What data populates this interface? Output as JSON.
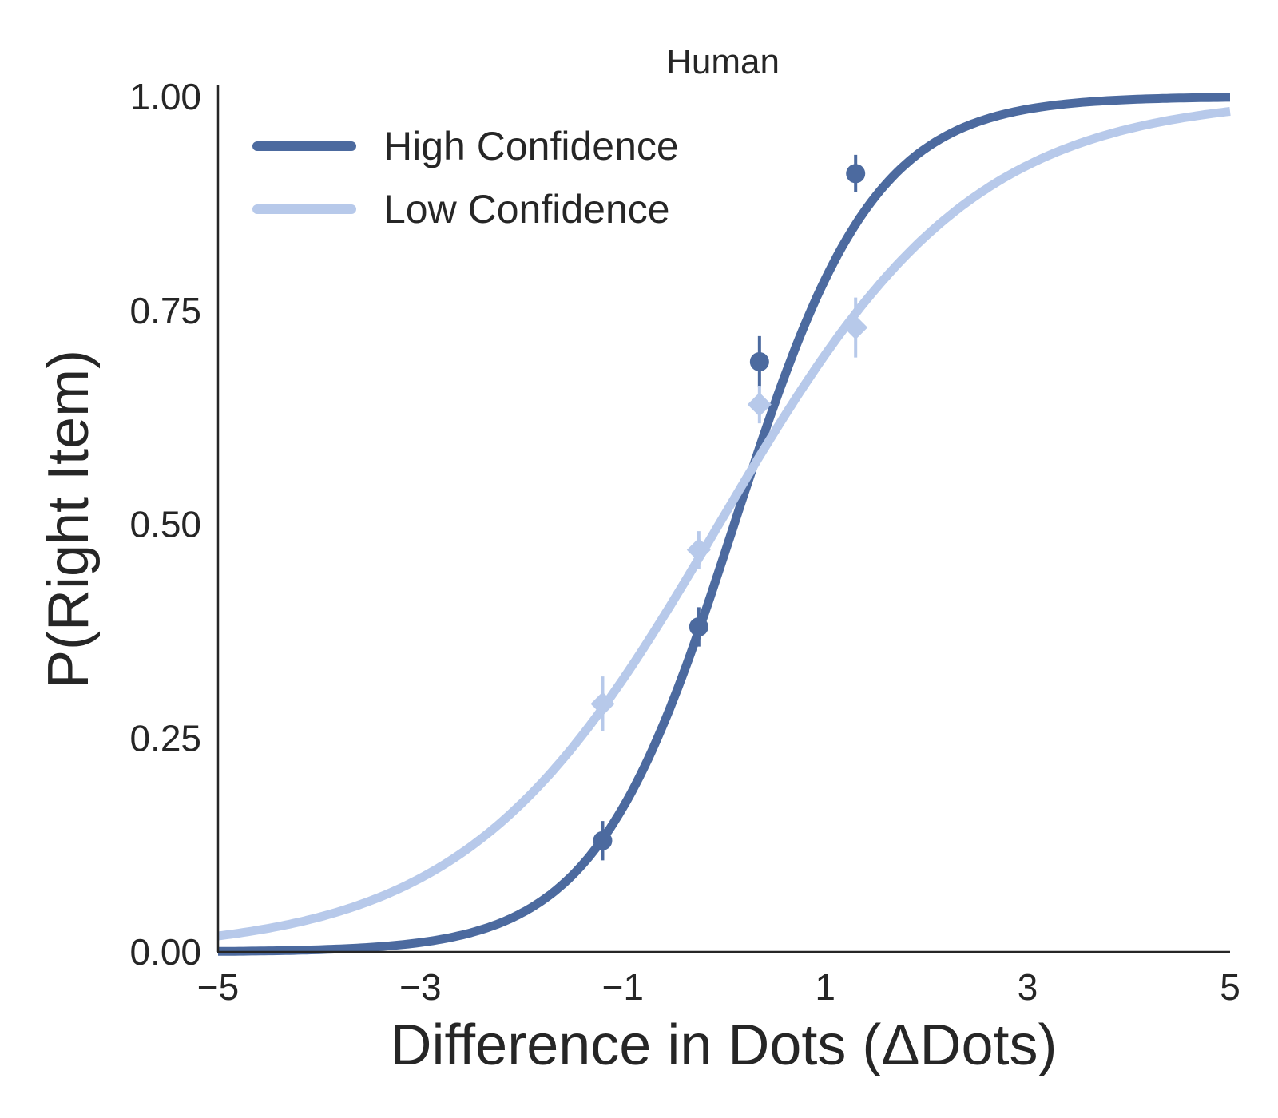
{
  "chart_data": {
    "type": "line",
    "title": "Human",
    "xlabel": "Difference in Dots (ΔDots)",
    "ylabel": "P(Right Item)",
    "xlim": [
      -5,
      5
    ],
    "ylim": [
      0,
      1
    ],
    "x_ticks": [
      -5,
      -3,
      -1,
      1,
      3,
      5
    ],
    "x_tick_labels": [
      "−5",
      "−3",
      "−1",
      "1",
      "3",
      "5"
    ],
    "y_ticks": [
      0,
      0.25,
      0.5,
      0.75,
      1
    ],
    "y_tick_labels": [
      "0.00",
      "0.25",
      "0.50",
      "0.75",
      "1.00"
    ],
    "grid": false,
    "legend_position": "top-left",
    "series": [
      {
        "name": "High Confidence",
        "color": "#4c6a9f",
        "marker": "circle",
        "fit": {
          "kind": "logistic",
          "midpoint": 0.1,
          "slope": 1.45
        },
        "points": [
          {
            "x": -1.2,
            "y": 0.13,
            "err": 0.023
          },
          {
            "x": -0.25,
            "y": 0.38,
            "err": 0.023
          },
          {
            "x": 0.35,
            "y": 0.69,
            "err": 0.03
          },
          {
            "x": 1.3,
            "y": 0.91,
            "err": 0.022
          }
        ]
      },
      {
        "name": "Low Confidence",
        "color": "#b7c9ea",
        "marker": "diamond",
        "fit": {
          "kind": "logistic",
          "midpoint": -0.05,
          "slope": 0.8
        },
        "points": [
          {
            "x": -1.2,
            "y": 0.29,
            "err": 0.032
          },
          {
            "x": -0.25,
            "y": 0.47,
            "err": 0.022
          },
          {
            "x": 0.35,
            "y": 0.64,
            "err": 0.022
          },
          {
            "x": 1.3,
            "y": 0.73,
            "err": 0.035
          }
        ]
      }
    ]
  }
}
